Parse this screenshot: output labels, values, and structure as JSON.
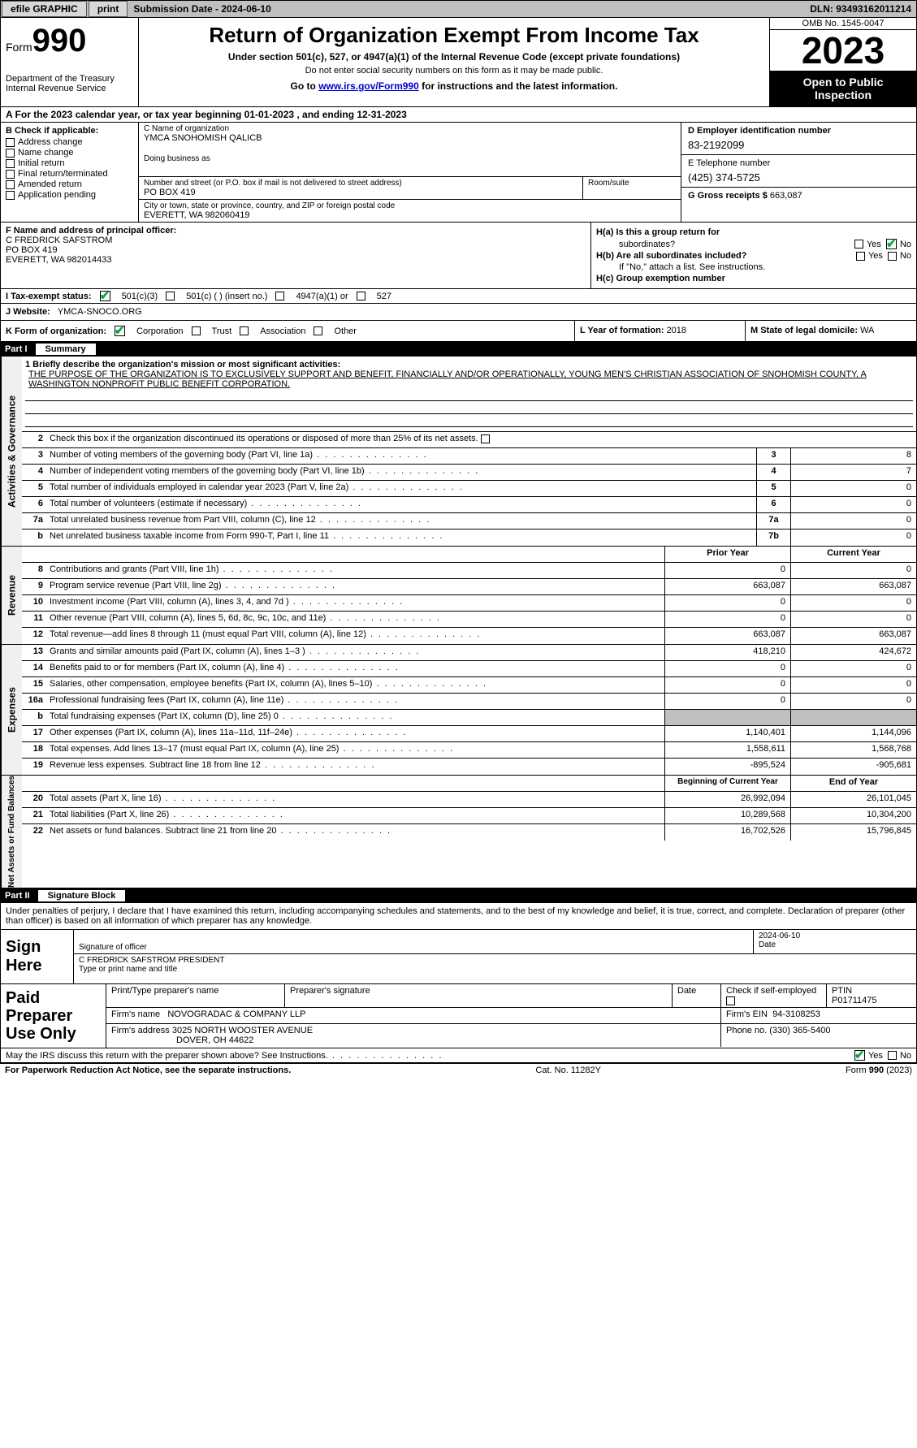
{
  "topbar": {
    "efile_label": "efile GRAPHIC",
    "print_label": "print",
    "submission_label": "Submission Date - 2024-06-10",
    "dln_label": "DLN: 93493162011214"
  },
  "header": {
    "form_prefix": "Form",
    "form_number": "990",
    "dept": "Department of the Treasury\nInternal Revenue Service",
    "title": "Return of Organization Exempt From Income Tax",
    "sub1": "Under section 501(c), 527, or 4947(a)(1) of the Internal Revenue Code (except private foundations)",
    "sub2": "Do not enter social security numbers on this form as it may be made public.",
    "goto_prefix": "Go to ",
    "goto_link": "www.irs.gov/Form990",
    "goto_suffix": " for instructions and the latest information.",
    "omb": "OMB No. 1545-0047",
    "year": "2023",
    "open": "Open to Public Inspection"
  },
  "row_a": "A For the 2023 calendar year, or tax year beginning 01-01-2023   , and ending 12-31-2023",
  "box_b": {
    "label": "B Check if applicable:",
    "items": [
      "Address change",
      "Name change",
      "Initial return",
      "Final return/terminated",
      "Amended return",
      "Application pending"
    ]
  },
  "box_c": {
    "name_lbl": "C Name of organization",
    "name": "YMCA SNOHOMISH QALICB",
    "dba_lbl": "Doing business as",
    "addr_lbl": "Number and street (or P.O. box if mail is not delivered to street address)",
    "addr": "PO BOX 419",
    "room_lbl": "Room/suite",
    "city_lbl": "City or town, state or province, country, and ZIP or foreign postal code",
    "city": "EVERETT, WA  982060419"
  },
  "box_d": {
    "ein_lbl": "D Employer identification number",
    "ein": "83-2192099",
    "phone_lbl": "E Telephone number",
    "phone": "(425) 374-5725",
    "gross_lbl": "G Gross receipts $ ",
    "gross": "663,087"
  },
  "box_f": {
    "lbl": "F Name and address of principal officer:",
    "name": "C FREDRICK SAFSTROM",
    "addr": "PO BOX 419",
    "city": "EVERETT, WA  982014433"
  },
  "box_h": {
    "ha_lbl": "H(a)  Is this a group return for",
    "ha_sub": "subordinates?",
    "hb_lbl": "H(b)  Are all subordinates included?",
    "hb_note": "If \"No,\" attach a list. See instructions.",
    "hc_lbl": "H(c)  Group exemption number",
    "yes": "Yes",
    "no": "No"
  },
  "box_i": {
    "lbl": "I    Tax-exempt status:",
    "c1": "501(c)(3)",
    "c2": "501(c) (  ) (insert no.)",
    "c3": "4947(a)(1) or",
    "c4": "527"
  },
  "box_j": {
    "lbl": "J    Website:",
    "val": "YMCA-SNOCO.ORG"
  },
  "box_k": {
    "lbl": "K Form of organization:",
    "o1": "Corporation",
    "o2": "Trust",
    "o3": "Association",
    "o4": "Other"
  },
  "box_l": {
    "lbl": "L Year of formation: ",
    "val": "2018"
  },
  "box_m": {
    "lbl": "M State of legal domicile: ",
    "val": "WA"
  },
  "part1": {
    "label": "Part I",
    "title": "Summary"
  },
  "summary": {
    "vtabs": [
      "Activities & Governance",
      "Revenue",
      "Expenses",
      "Net Assets or Fund Balances"
    ],
    "line1_lbl": "1   Briefly describe the organization's mission or most significant activities:",
    "mission": "THE PURPOSE OF THE ORGANIZATION IS TO EXCLUSIVELY SUPPORT AND BENEFIT, FINANCIALLY AND/OR OPERATIONALLY, YOUNG MEN'S CHRISTIAN ASSOCIATION OF SNOHOMISH COUNTY, A WASHINGTON NONPROFIT PUBLIC BENEFIT CORPORATION.",
    "line2": "Check this box       if the organization discontinued its operations or disposed of more than 25% of its net assets.",
    "gov_rows": [
      {
        "n": "3",
        "t": "Number of voting members of the governing body (Part VI, line 1a)",
        "c": "3",
        "v": "8"
      },
      {
        "n": "4",
        "t": "Number of independent voting members of the governing body (Part VI, line 1b)",
        "c": "4",
        "v": "7"
      },
      {
        "n": "5",
        "t": "Total number of individuals employed in calendar year 2023 (Part V, line 2a)",
        "c": "5",
        "v": "0"
      },
      {
        "n": "6",
        "t": "Total number of volunteers (estimate if necessary)",
        "c": "6",
        "v": "0"
      },
      {
        "n": "7a",
        "t": "Total unrelated business revenue from Part VIII, column (C), line 12",
        "c": "7a",
        "v": "0"
      },
      {
        "n": "b",
        "t": "Net unrelated business taxable income from Form 990-T, Part I, line 11",
        "c": "7b",
        "v": "0"
      }
    ],
    "hdr_prior": "Prior Year",
    "hdr_current": "Current Year",
    "rev_rows": [
      {
        "n": "8",
        "t": "Contributions and grants (Part VIII, line 1h)",
        "p": "0",
        "c": "0"
      },
      {
        "n": "9",
        "t": "Program service revenue (Part VIII, line 2g)",
        "p": "663,087",
        "c": "663,087"
      },
      {
        "n": "10",
        "t": "Investment income (Part VIII, column (A), lines 3, 4, and 7d )",
        "p": "0",
        "c": "0"
      },
      {
        "n": "11",
        "t": "Other revenue (Part VIII, column (A), lines 5, 6d, 8c, 9c, 10c, and 11e)",
        "p": "0",
        "c": "0"
      },
      {
        "n": "12",
        "t": "Total revenue—add lines 8 through 11 (must equal Part VIII, column (A), line 12)",
        "p": "663,087",
        "c": "663,087"
      }
    ],
    "exp_rows": [
      {
        "n": "13",
        "t": "Grants and similar amounts paid (Part IX, column (A), lines 1–3 )",
        "p": "418,210",
        "c": "424,672"
      },
      {
        "n": "14",
        "t": "Benefits paid to or for members (Part IX, column (A), line 4)",
        "p": "0",
        "c": "0"
      },
      {
        "n": "15",
        "t": "Salaries, other compensation, employee benefits (Part IX, column (A), lines 5–10)",
        "p": "0",
        "c": "0"
      },
      {
        "n": "16a",
        "t": "Professional fundraising fees (Part IX, column (A), line 11e)",
        "p": "0",
        "c": "0"
      },
      {
        "n": "b",
        "t": "Total fundraising expenses (Part IX, column (D), line 25) 0",
        "p": "",
        "c": "",
        "grey": true
      },
      {
        "n": "17",
        "t": "Other expenses (Part IX, column (A), lines 11a–11d, 11f–24e)",
        "p": "1,140,401",
        "c": "1,144,096"
      },
      {
        "n": "18",
        "t": "Total expenses. Add lines 13–17 (must equal Part IX, column (A), line 25)",
        "p": "1,558,611",
        "c": "1,568,768"
      },
      {
        "n": "19",
        "t": "Revenue less expenses. Subtract line 18 from line 12",
        "p": "-895,524",
        "c": "-905,681"
      }
    ],
    "hdr_begin": "Beginning of Current Year",
    "hdr_end": "End of Year",
    "net_rows": [
      {
        "n": "20",
        "t": "Total assets (Part X, line 16)",
        "p": "26,992,094",
        "c": "26,101,045"
      },
      {
        "n": "21",
        "t": "Total liabilities (Part X, line 26)",
        "p": "10,289,568",
        "c": "10,304,200"
      },
      {
        "n": "22",
        "t": "Net assets or fund balances. Subtract line 21 from line 20",
        "p": "16,702,526",
        "c": "15,796,845"
      }
    ]
  },
  "part2": {
    "label": "Part II",
    "title": "Signature Block"
  },
  "sig_decl": "Under penalties of perjury, I declare that I have examined this return, including accompanying schedules and statements, and to the best of my knowledge and belief, it is true, correct, and complete. Declaration of preparer (other than officer) is based on all information of which preparer has any knowledge.",
  "sign": {
    "here": "Sign Here",
    "sig_lbl": "Signature of officer",
    "date_lbl": "Date",
    "date": "2024-06-10",
    "name": "C FREDRICK SAFSTROM PRESIDENT",
    "type_lbl": "Type or print name and title"
  },
  "paid": {
    "here": "Paid Preparer Use Only",
    "print_lbl": "Print/Type preparer's name",
    "sig_lbl": "Preparer's signature",
    "date_lbl": "Date",
    "check_lbl": "Check        if self-employed",
    "ptin_lbl": "PTIN",
    "ptin": "P01711475",
    "firm_name_lbl": "Firm's name",
    "firm_name": "NOVOGRADAC & COMPANY LLP",
    "firm_ein_lbl": "Firm's EIN",
    "firm_ein": "94-3108253",
    "firm_addr_lbl": "Firm's address",
    "firm_addr": "3025 NORTH WOOSTER AVENUE",
    "firm_city": "DOVER, OH  44622",
    "phone_lbl": "Phone no.",
    "phone": "(330) 365-5400"
  },
  "bottom": {
    "discuss": "May the IRS discuss this return with the preparer shown above? See Instructions.",
    "yes": "Yes",
    "no": "No"
  },
  "footer": {
    "l": "For Paperwork Reduction Act Notice, see the separate instructions.",
    "m": "Cat. No. 11282Y",
    "r": "Form 990 (2023)"
  }
}
